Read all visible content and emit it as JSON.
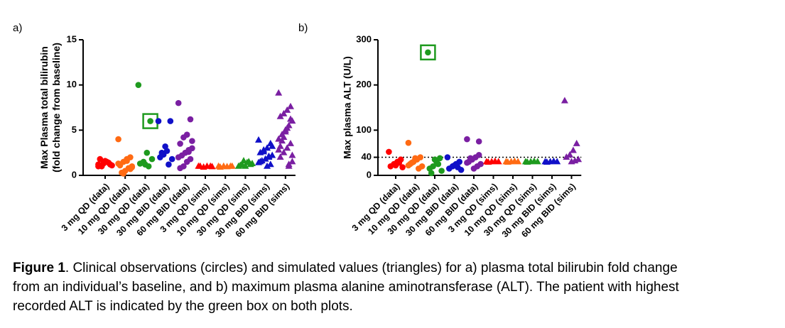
{
  "panel_labels": [
    "a)",
    "b)"
  ],
  "chart_data": [
    {
      "type": "strip",
      "ylabel": [
        "Max Plasma total bilirubin",
        "(fold change from baseline)"
      ],
      "categories": [
        "3 mg QD (data)",
        "10 mg QD (data)",
        "30 mg QD (data)",
        "30 mg BID (data)",
        "60 mg BID (data)",
        "3 mg QD (sims)",
        "10 mg QD (sims)",
        "30 mg QD (sims)",
        "30 mg BID (sims)",
        "60 mg BID (sims)"
      ],
      "colors": [
        "#ff0000",
        "#ff6a13",
        "#1e9a1e",
        "#1010c8",
        "#7a1fa2",
        "#ff0000",
        "#ff6a13",
        "#1e9a1e",
        "#1010c8",
        "#7a1fa2"
      ],
      "markers": [
        "circle",
        "circle",
        "circle",
        "circle",
        "circle",
        "triangle",
        "triangle",
        "triangle",
        "triangle",
        "triangle"
      ],
      "values": [
        [
          1.0,
          1.2,
          1.5,
          1.3,
          1.8,
          1.1,
          1.4,
          1.6,
          1.0,
          1.2
        ],
        [
          4.0,
          2.0,
          1.8,
          1.5,
          1.2,
          1.0,
          0.8,
          0.5,
          0.3,
          1.3,
          0.7,
          1.6,
          0.2,
          1.1,
          0.9
        ],
        [
          10,
          6,
          2.5,
          1.5,
          1.3,
          1.8,
          1.0,
          1.2
        ],
        [
          6,
          6,
          2.7,
          2.3,
          2.0,
          1.8,
          1.2,
          3.2,
          2.5
        ],
        [
          8,
          6.2,
          4.5,
          4.2,
          3.5,
          3.0,
          2.8,
          2.5,
          2.2,
          2.0,
          1.8,
          1.5,
          1.0,
          0.8,
          3.8,
          2.6
        ],
        [
          1.0,
          1.0,
          1.0,
          0.9,
          1.0,
          0.95
        ],
        [
          1.0,
          1.0,
          0.95,
          1.0,
          0.9,
          1.0
        ],
        [
          1.0,
          1.2,
          1.4,
          1.6,
          1.1,
          1.3,
          1.5,
          1.0,
          1.2
        ],
        [
          3.9,
          3.5,
          3.0,
          2.8,
          2.5,
          2.2,
          2.0,
          1.8,
          1.6,
          1.4,
          1.2,
          1.0,
          2.6,
          1.5,
          3.2,
          2.1
        ],
        [
          9.1,
          7.6,
          7.2,
          6.8,
          6.5,
          6.0,
          5.5,
          5.0,
          4.5,
          4.0,
          3.5,
          3.0,
          2.5,
          2.0,
          1.5,
          1.0,
          4.8,
          3.8,
          2.8,
          6.2,
          5.2,
          4.2,
          3.2,
          2.2,
          1.2
        ]
      ],
      "ylim": [
        0,
        15
      ],
      "yticks": [
        0,
        5,
        10,
        15
      ],
      "highlight": [
        2,
        1
      ]
    },
    {
      "type": "strip",
      "ylabel": [
        "Max plasma ALT (U/L)"
      ],
      "categories": [
        "3 mg QD (data)",
        "10 mg QD (data)",
        "30 mg QD (data)",
        "30 mg BID (data)",
        "60 mg BID (data)",
        "3 mg QD (sims)",
        "10 mg QD (sims)",
        "30 mg QD (sims)",
        "30 mg BID (sims)",
        "60 mg BID (sims)"
      ],
      "colors": [
        "#ff0000",
        "#ff6a13",
        "#1e9a1e",
        "#1010c8",
        "#7a1fa2",
        "#ff0000",
        "#ff6a13",
        "#1e9a1e",
        "#1010c8",
        "#7a1fa2"
      ],
      "markers": [
        "circle",
        "circle",
        "circle",
        "circle",
        "circle",
        "triangle",
        "triangle",
        "triangle",
        "triangle",
        "triangle"
      ],
      "values": [
        [
          52,
          35,
          30,
          25,
          20,
          18,
          28,
          22
        ],
        [
          72,
          40,
          35,
          30,
          25,
          20,
          15,
          38,
          28,
          22
        ],
        [
          272,
          38,
          30,
          20,
          15,
          10,
          25,
          35,
          5
        ],
        [
          40,
          30,
          25,
          20,
          15,
          12,
          18,
          22
        ],
        [
          80,
          75,
          40,
          35,
          30,
          25,
          20,
          15,
          38,
          28,
          45
        ],
        [
          30,
          30,
          31,
          30,
          29
        ],
        [
          30,
          30,
          31,
          30,
          29
        ],
        [
          30,
          30,
          31,
          30,
          29
        ],
        [
          30,
          30,
          31,
          30,
          29
        ],
        [
          165,
          70,
          55,
          45,
          40,
          35,
          32,
          30
        ]
      ],
      "ylim": [
        0,
        300
      ],
      "yticks": [
        0,
        40,
        100,
        200,
        300
      ],
      "refline": 40,
      "highlight": [
        2,
        0
      ]
    }
  ],
  "caption": {
    "label": "Figure 1",
    "lines": [
      ". Clinical observations (circles) and simulated values (triangles) for a) plasma total bilirubin fold change",
      "from an individual’s baseline, and b) maximum plasma alanine aminotransferase (ALT). The patient with highest",
      "recorded ALT is indicated by the green box on both plots."
    ]
  }
}
